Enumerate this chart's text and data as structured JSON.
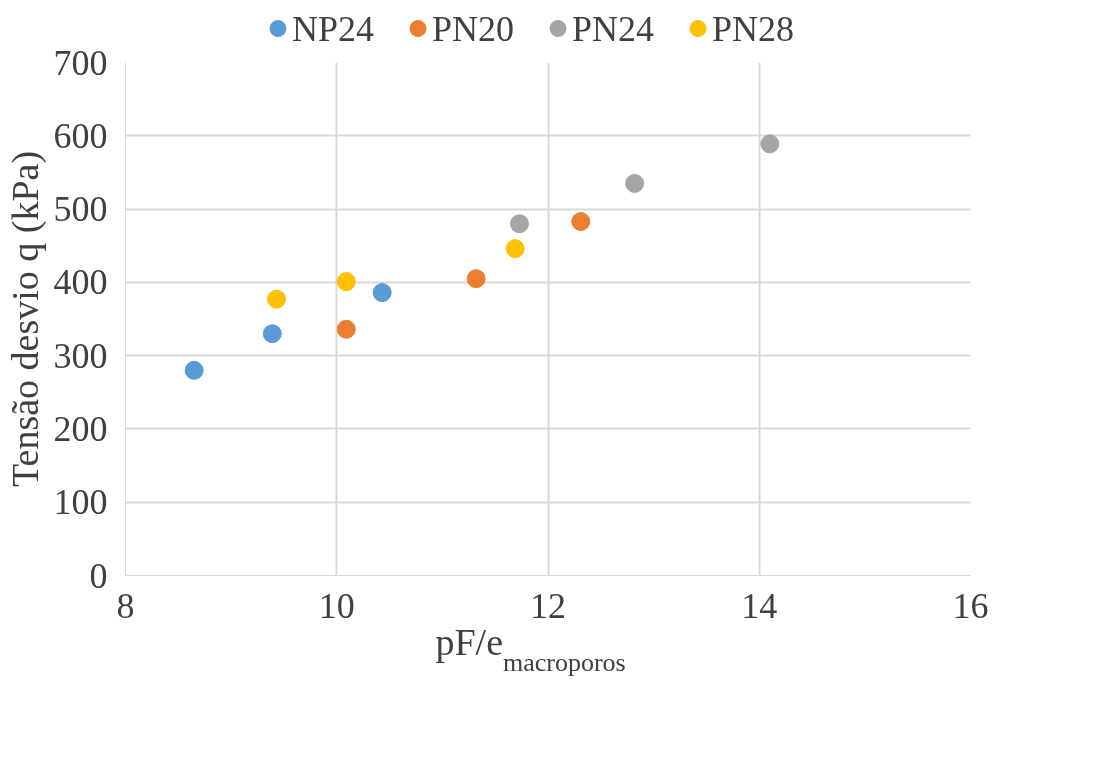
{
  "chart_data": {
    "type": "scatter",
    "xlabel": "pF/e$_{macroporos}$",
    "ylabel": "Tensão desvio q (kPa)",
    "xlim": [
      8,
      16
    ],
    "xticks": [
      8,
      10,
      12,
      14,
      16
    ],
    "ylim": [
      0,
      700
    ],
    "yticks": [
      0,
      100,
      200,
      300,
      400,
      500,
      600,
      700
    ],
    "grid": true,
    "legend": "top",
    "marker": "circle",
    "series": [
      {
        "name": "NP24",
        "color": "#5b9bd5",
        "x": [
          8.65,
          9.39,
          10.43
        ],
        "values": [
          280,
          330,
          386
        ]
      },
      {
        "name": "PN20",
        "color": "#ed7d31",
        "x": [
          10.09,
          11.32,
          12.31
        ],
        "values": [
          336,
          405,
          483
        ]
      },
      {
        "name": "PN24",
        "color": "#a5a5a5",
        "x": [
          11.73,
          12.82,
          14.1
        ],
        "values": [
          480,
          535,
          589
        ]
      },
      {
        "name": "PN28",
        "color": "#ffc000",
        "x": [
          9.43,
          10.09,
          11.69
        ],
        "values": [
          377,
          401,
          446
        ]
      }
    ]
  }
}
